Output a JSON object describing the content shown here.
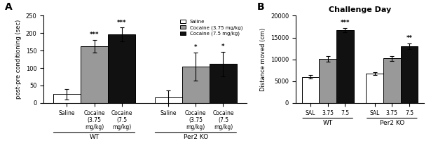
{
  "chart_data": [
    {
      "type": "bar",
      "ylabel": "post-pre conditioning (sec)",
      "categories": [
        "WT",
        "Per2 KO"
      ],
      "series": [
        {
          "name": "Saline",
          "color": "white",
          "values": [
            25,
            15
          ],
          "errors": [
            15,
            20
          ]
        },
        {
          "name": "Cocaine (3.75 mg/kg)",
          "color": "#999999",
          "values": [
            163,
            105
          ],
          "errors": [
            18,
            40
          ]
        },
        {
          "name": "Cocaine (7.5 mg/kg)",
          "color": "#111111",
          "values": [
            196,
            112
          ],
          "errors": [
            20,
            35
          ]
        }
      ],
      "annotations": [
        {
          "text": "A"
        },
        {
          "text": "***",
          "category": "WT",
          "series": "Cocaine (3.75 mg/kg)"
        },
        {
          "text": "***",
          "category": "WT",
          "series": "Cocaine (7.5 mg/kg)"
        },
        {
          "text": "*",
          "category": "Per2 KO",
          "series": "Cocaine (3.75 mg/kg)"
        },
        {
          "text": "*",
          "category": "Per2 KO",
          "series": "Cocaine (7.5 mg/kg)"
        }
      ],
      "ylim": [
        0,
        250
      ],
      "yticks": [
        0,
        50,
        100,
        150,
        200,
        250
      ],
      "legend": "upper right"
    },
    {
      "type": "bar",
      "title": "Challenge Day",
      "ylabel": "Distance moved (cm)",
      "categories": [
        "WT",
        "Per2 KO"
      ],
      "series": [
        {
          "name": "SAL",
          "color": "white",
          "values": [
            6000,
            6700
          ],
          "errors": [
            400,
            350
          ]
        },
        {
          "name": "3.75",
          "color": "#999999",
          "values": [
            10100,
            10200
          ],
          "errors": [
            600,
            500
          ]
        },
        {
          "name": "7.5",
          "color": "#111111",
          "values": [
            16700,
            13000
          ],
          "errors": [
            500,
            700
          ]
        }
      ],
      "annotations": [
        {
          "text": "B"
        },
        {
          "text": "***",
          "category": "WT",
          "series": "7.5"
        },
        {
          "text": "**",
          "category": "Per2 KO",
          "series": "7.5"
        }
      ],
      "ylim": [
        0,
        20000
      ],
      "yticks": [
        0,
        5000,
        10000,
        15000,
        20000
      ]
    }
  ]
}
